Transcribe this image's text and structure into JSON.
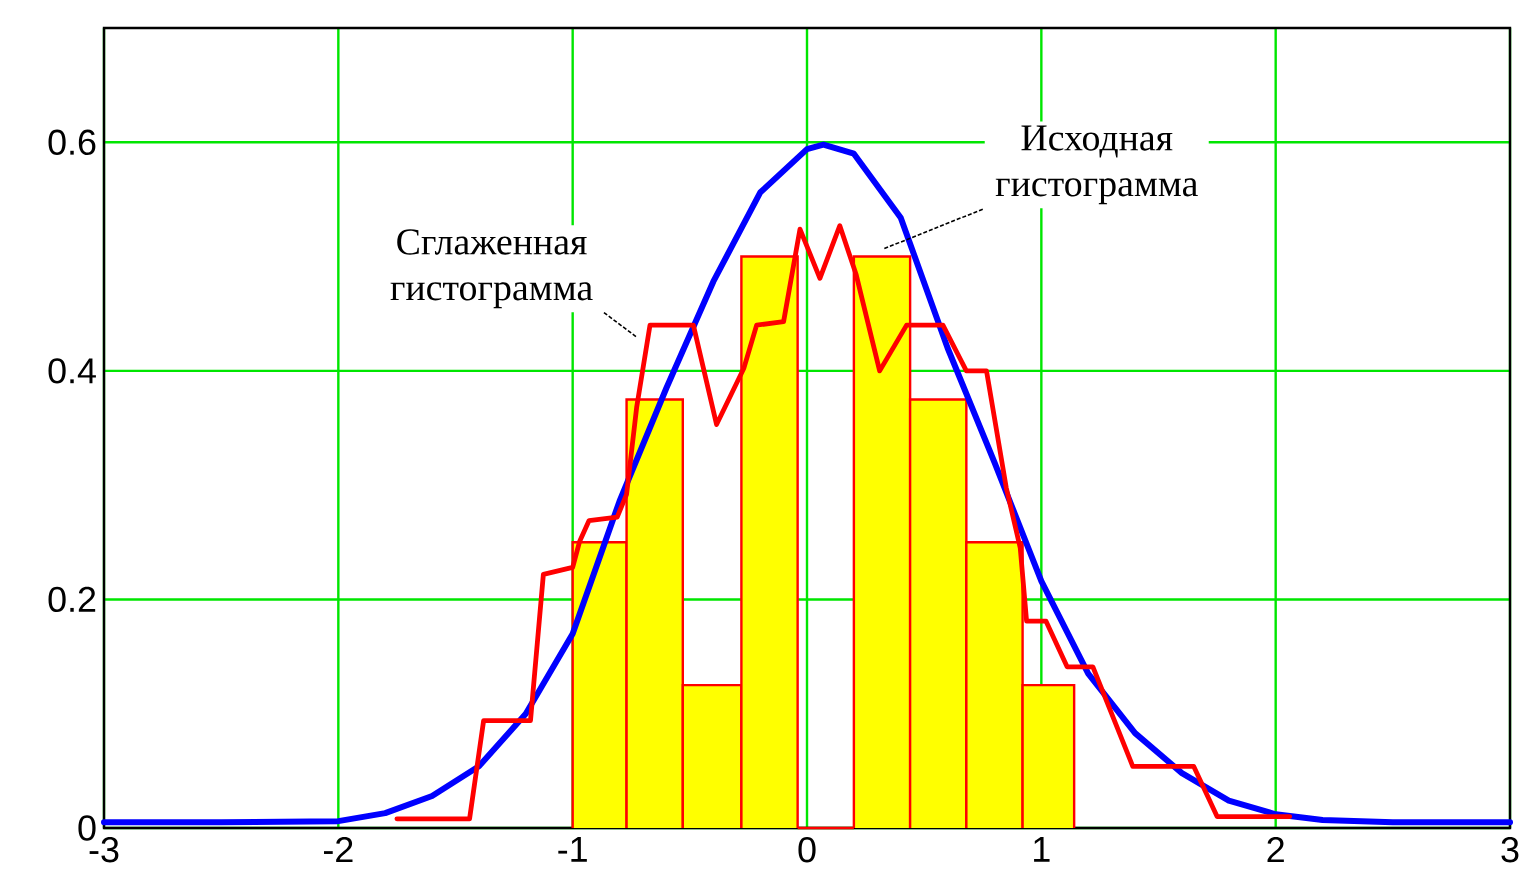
{
  "chart_data": {
    "type": "histogram",
    "xlim": [
      -3,
      3
    ],
    "ylim": [
      0,
      0.7
    ],
    "xticks": [
      -3,
      -2,
      -1,
      0,
      1,
      2,
      3
    ],
    "yticks": [
      0,
      0.2,
      0.4,
      0.6
    ],
    "grid": true,
    "series": [
      {
        "color": "#ffff00",
        "bins": [
          -1.0,
          -0.77,
          -0.53,
          -0.28,
          -0.04,
          0.2,
          0.44,
          0.68,
          0.92,
          1.14
        ],
        "values": [
          0.25,
          0.375,
          0.125,
          0.5,
          0,
          0.5,
          0.375,
          0.25,
          0.125
        ]
      },
      {
        "type": "line",
        "color": "#0000ff",
        "x": [
          -3,
          -2.5,
          -2.0,
          -1.8,
          -1.6,
          -1.4,
          -1.2,
          -1.0,
          -0.8,
          -0.6,
          -0.4,
          -0.2,
          0,
          0.07,
          0.2,
          0.4,
          0.6,
          0.8,
          1.0,
          1.2,
          1.4,
          1.6,
          1.8,
          2.0,
          2.2,
          2.5,
          3
        ],
        "values": [
          0.005,
          0.005,
          0.006,
          0.013,
          0.028,
          0.054,
          0.1,
          0.17,
          0.286,
          0.385,
          0.478,
          0.556,
          0.594,
          0.598,
          0.59,
          0.534,
          0.42,
          0.32,
          0.216,
          0.135,
          0.083,
          0.048,
          0.024,
          0.012,
          0.007,
          0.005,
          0.005
        ]
      },
      {
        "type": "line",
        "color": "#ff0000",
        "x": [
          -1.75,
          -1.44,
          -1.38,
          -1.18,
          -1.125,
          -1.0,
          -0.97,
          -0.93,
          -0.81,
          -0.77,
          -0.727,
          -0.67,
          -0.485,
          -0.386,
          -0.27,
          -0.215,
          -0.1,
          -0.03,
          0.055,
          0.14,
          0.21,
          0.31,
          0.425,
          0.58,
          0.68,
          0.766,
          0.85,
          0.91,
          0.937,
          1.02,
          1.11,
          1.22,
          1.39,
          1.65,
          1.75,
          2.06
        ],
        "values": [
          0.008,
          0.008,
          0.094,
          0.094,
          0.222,
          0.228,
          0.251,
          0.269,
          0.272,
          0.292,
          0.368,
          0.44,
          0.44,
          0.353,
          0.402,
          0.44,
          0.443,
          0.524,
          0.481,
          0.527,
          0.484,
          0.4,
          0.44,
          0.44,
          0.4,
          0.4,
          0.298,
          0.245,
          0.181,
          0.181,
          0.141,
          0.141,
          0.054,
          0.054,
          0.01,
          0.01
        ]
      }
    ],
    "annotations": [
      {
        "text": "Сглаженная гистограмма",
        "x": -0.73,
        "y": 0.43
      },
      {
        "text": "Исходная гистограмма",
        "x": 0.33,
        "y": 0.507
      }
    ]
  }
}
